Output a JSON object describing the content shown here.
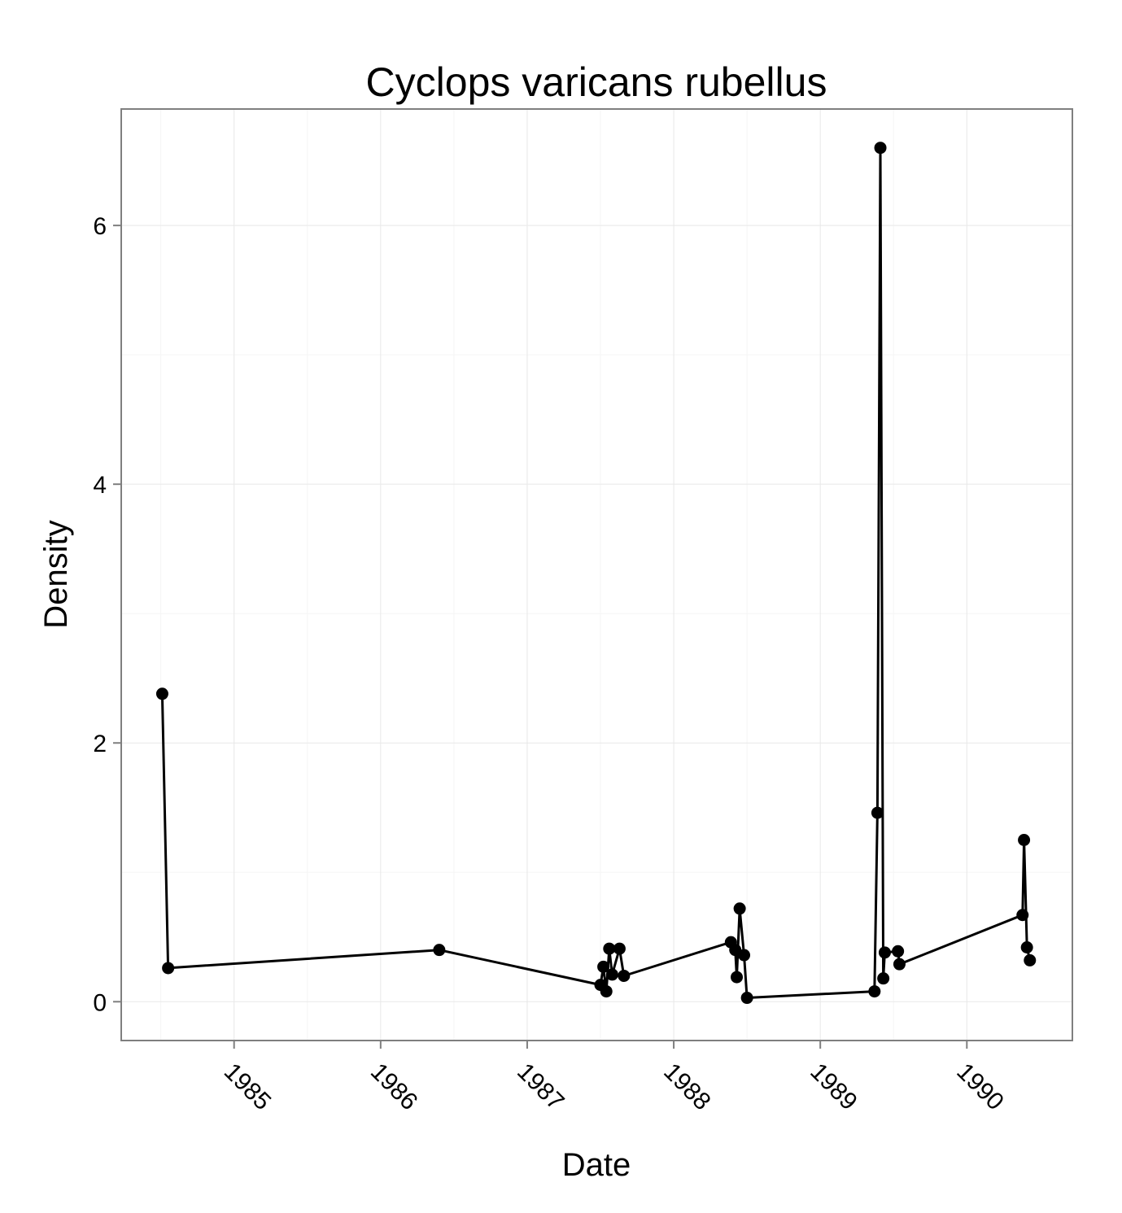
{
  "chart_data": {
    "type": "line",
    "title": "Cyclops varicans rubellus",
    "xlabel": "Date",
    "ylabel": "Density",
    "xlim": [
      1984.23,
      1990.72
    ],
    "ylim": [
      -0.3,
      6.9
    ],
    "x_ticks": [
      1985,
      1986,
      1987,
      1988,
      1989,
      1990
    ],
    "x_tick_labels": [
      "1985",
      "1986",
      "1987",
      "1988",
      "1989",
      "1990"
    ],
    "y_ticks": [
      0,
      2,
      4,
      6
    ],
    "y_tick_labels": [
      "0",
      "2",
      "4",
      "6"
    ],
    "grid": true,
    "legend": "none",
    "series": [
      {
        "name": "Density",
        "color": "#000000",
        "points": [
          {
            "x": 1984.51,
            "y": 2.38
          },
          {
            "x": 1984.55,
            "y": 0.26
          },
          {
            "x": 1986.4,
            "y": 0.4
          },
          {
            "x": 1987.5,
            "y": 0.13
          },
          {
            "x": 1987.52,
            "y": 0.27
          },
          {
            "x": 1987.54,
            "y": 0.08
          },
          {
            "x": 1987.56,
            "y": 0.41
          },
          {
            "x": 1987.58,
            "y": 0.21
          },
          {
            "x": 1987.63,
            "y": 0.41
          },
          {
            "x": 1987.66,
            "y": 0.2
          },
          {
            "x": 1988.39,
            "y": 0.46
          },
          {
            "x": 1988.42,
            "y": 0.4
          },
          {
            "x": 1988.43,
            "y": 0.19
          },
          {
            "x": 1988.45,
            "y": 0.72
          },
          {
            "x": 1988.48,
            "y": 0.36
          },
          {
            "x": 1988.5,
            "y": 0.03
          },
          {
            "x": 1989.37,
            "y": 0.08
          },
          {
            "x": 1989.39,
            "y": 1.46
          },
          {
            "x": 1989.41,
            "y": 6.6
          },
          {
            "x": 1989.43,
            "y": 0.18
          },
          {
            "x": 1989.44,
            "y": 0.38
          },
          {
            "x": 1989.53,
            "y": 0.39
          },
          {
            "x": 1989.54,
            "y": 0.29
          },
          {
            "x": 1990.38,
            "y": 0.67
          },
          {
            "x": 1990.39,
            "y": 1.25
          },
          {
            "x": 1990.41,
            "y": 0.42
          },
          {
            "x": 1990.43,
            "y": 0.32
          }
        ]
      }
    ]
  }
}
